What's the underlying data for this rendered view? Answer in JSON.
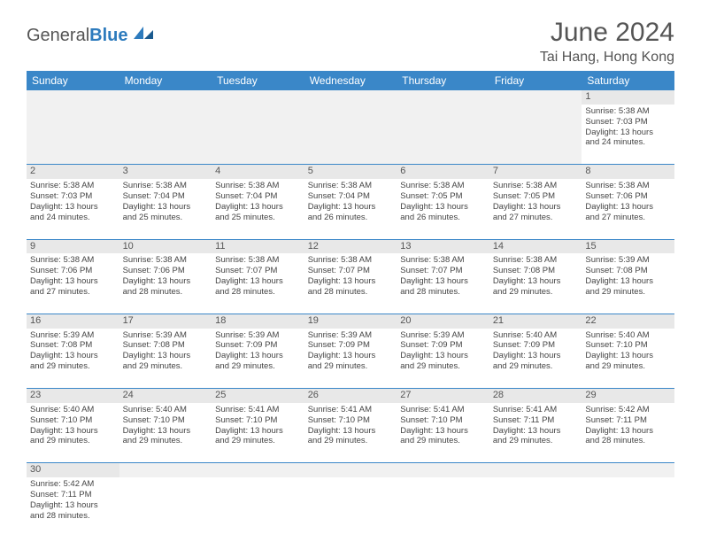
{
  "brand": {
    "part1": "General",
    "part2": "Blue"
  },
  "title": "June 2024",
  "location": "Tai Hang, Hong Kong",
  "colors": {
    "header_bg": "#3a87c8",
    "header_fg": "#ffffff",
    "daynum_bg": "#e8e8e8",
    "divider": "#3a87c8",
    "text": "#444444",
    "title_color": "#555555"
  },
  "fonts": {
    "title_size_pt": 22,
    "location_size_pt": 12,
    "header_size_pt": 9,
    "cell_size_pt": 7,
    "daynum_size_pt": 8
  },
  "dayHeaders": [
    "Sunday",
    "Monday",
    "Tuesday",
    "Wednesday",
    "Thursday",
    "Friday",
    "Saturday"
  ],
  "weeks": [
    [
      null,
      null,
      null,
      null,
      null,
      null,
      {
        "n": "1",
        "sunrise": "5:38 AM",
        "sunset": "7:03 PM",
        "daylight_h": 13,
        "daylight_m": 24
      }
    ],
    [
      {
        "n": "2",
        "sunrise": "5:38 AM",
        "sunset": "7:03 PM",
        "daylight_h": 13,
        "daylight_m": 24
      },
      {
        "n": "3",
        "sunrise": "5:38 AM",
        "sunset": "7:04 PM",
        "daylight_h": 13,
        "daylight_m": 25
      },
      {
        "n": "4",
        "sunrise": "5:38 AM",
        "sunset": "7:04 PM",
        "daylight_h": 13,
        "daylight_m": 25
      },
      {
        "n": "5",
        "sunrise": "5:38 AM",
        "sunset": "7:04 PM",
        "daylight_h": 13,
        "daylight_m": 26
      },
      {
        "n": "6",
        "sunrise": "5:38 AM",
        "sunset": "7:05 PM",
        "daylight_h": 13,
        "daylight_m": 26
      },
      {
        "n": "7",
        "sunrise": "5:38 AM",
        "sunset": "7:05 PM",
        "daylight_h": 13,
        "daylight_m": 27
      },
      {
        "n": "8",
        "sunrise": "5:38 AM",
        "sunset": "7:06 PM",
        "daylight_h": 13,
        "daylight_m": 27
      }
    ],
    [
      {
        "n": "9",
        "sunrise": "5:38 AM",
        "sunset": "7:06 PM",
        "daylight_h": 13,
        "daylight_m": 27
      },
      {
        "n": "10",
        "sunrise": "5:38 AM",
        "sunset": "7:06 PM",
        "daylight_h": 13,
        "daylight_m": 28
      },
      {
        "n": "11",
        "sunrise": "5:38 AM",
        "sunset": "7:07 PM",
        "daylight_h": 13,
        "daylight_m": 28
      },
      {
        "n": "12",
        "sunrise": "5:38 AM",
        "sunset": "7:07 PM",
        "daylight_h": 13,
        "daylight_m": 28
      },
      {
        "n": "13",
        "sunrise": "5:38 AM",
        "sunset": "7:07 PM",
        "daylight_h": 13,
        "daylight_m": 28
      },
      {
        "n": "14",
        "sunrise": "5:38 AM",
        "sunset": "7:08 PM",
        "daylight_h": 13,
        "daylight_m": 29
      },
      {
        "n": "15",
        "sunrise": "5:39 AM",
        "sunset": "7:08 PM",
        "daylight_h": 13,
        "daylight_m": 29
      }
    ],
    [
      {
        "n": "16",
        "sunrise": "5:39 AM",
        "sunset": "7:08 PM",
        "daylight_h": 13,
        "daylight_m": 29
      },
      {
        "n": "17",
        "sunrise": "5:39 AM",
        "sunset": "7:08 PM",
        "daylight_h": 13,
        "daylight_m": 29
      },
      {
        "n": "18",
        "sunrise": "5:39 AM",
        "sunset": "7:09 PM",
        "daylight_h": 13,
        "daylight_m": 29
      },
      {
        "n": "19",
        "sunrise": "5:39 AM",
        "sunset": "7:09 PM",
        "daylight_h": 13,
        "daylight_m": 29
      },
      {
        "n": "20",
        "sunrise": "5:39 AM",
        "sunset": "7:09 PM",
        "daylight_h": 13,
        "daylight_m": 29
      },
      {
        "n": "21",
        "sunrise": "5:40 AM",
        "sunset": "7:09 PM",
        "daylight_h": 13,
        "daylight_m": 29
      },
      {
        "n": "22",
        "sunrise": "5:40 AM",
        "sunset": "7:10 PM",
        "daylight_h": 13,
        "daylight_m": 29
      }
    ],
    [
      {
        "n": "23",
        "sunrise": "5:40 AM",
        "sunset": "7:10 PM",
        "daylight_h": 13,
        "daylight_m": 29
      },
      {
        "n": "24",
        "sunrise": "5:40 AM",
        "sunset": "7:10 PM",
        "daylight_h": 13,
        "daylight_m": 29
      },
      {
        "n": "25",
        "sunrise": "5:41 AM",
        "sunset": "7:10 PM",
        "daylight_h": 13,
        "daylight_m": 29
      },
      {
        "n": "26",
        "sunrise": "5:41 AM",
        "sunset": "7:10 PM",
        "daylight_h": 13,
        "daylight_m": 29
      },
      {
        "n": "27",
        "sunrise": "5:41 AM",
        "sunset": "7:10 PM",
        "daylight_h": 13,
        "daylight_m": 29
      },
      {
        "n": "28",
        "sunrise": "5:41 AM",
        "sunset": "7:11 PM",
        "daylight_h": 13,
        "daylight_m": 29
      },
      {
        "n": "29",
        "sunrise": "5:42 AM",
        "sunset": "7:11 PM",
        "daylight_h": 13,
        "daylight_m": 28
      }
    ],
    [
      {
        "n": "30",
        "sunrise": "5:42 AM",
        "sunset": "7:11 PM",
        "daylight_h": 13,
        "daylight_m": 28
      },
      null,
      null,
      null,
      null,
      null,
      null
    ]
  ],
  "labels": {
    "sunrise": "Sunrise",
    "sunset": "Sunset",
    "daylight": "Daylight",
    "hours": "hours",
    "and": "and",
    "minutes": "minutes."
  }
}
